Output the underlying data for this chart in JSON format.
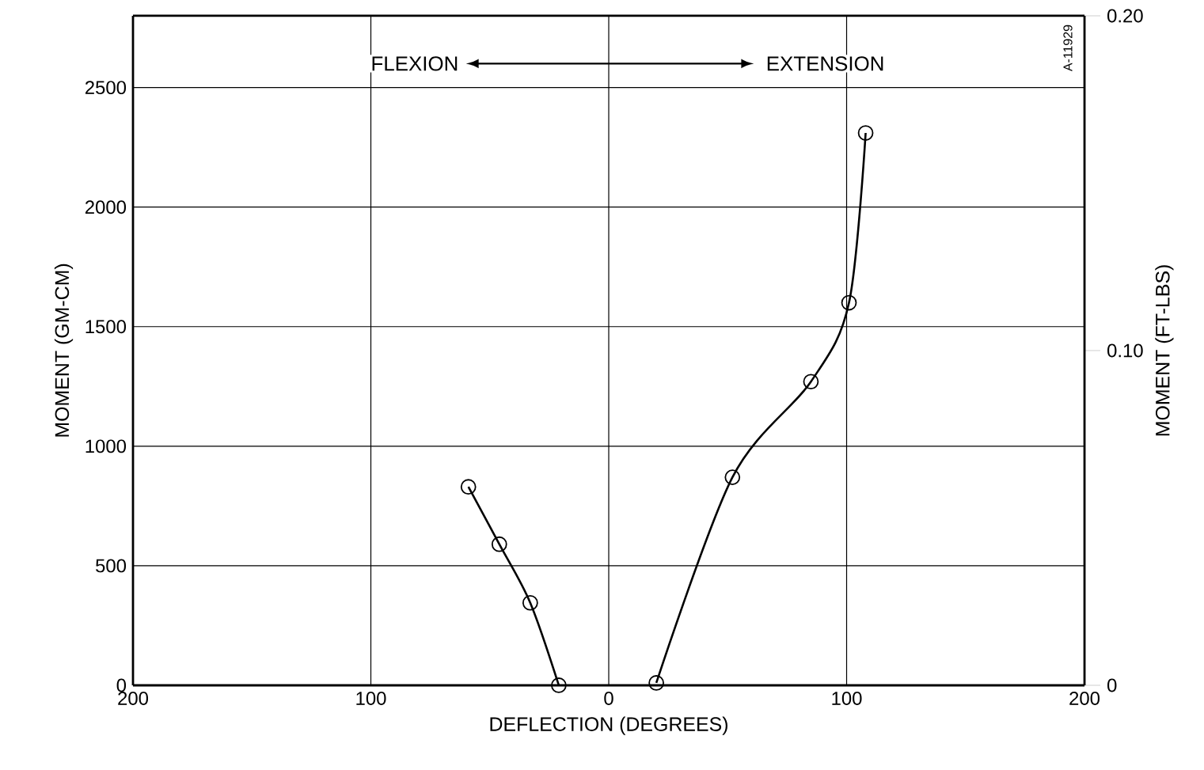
{
  "chart_data": {
    "type": "line",
    "xlabel": "DEFLECTION (DEGREES)",
    "ylabel": "MOMENT (GM-CM)",
    "y2label": "MOMENT (FT-LBS)",
    "annotations": [
      "FLEXION",
      "EXTENSION",
      "A-11929"
    ],
    "xlim": [
      -200,
      200
    ],
    "xticks": [
      {
        "value": -200,
        "label": "200"
      },
      {
        "value": -100,
        "label": "100"
      },
      0,
      100,
      200
    ],
    "ylim": [
      0,
      2800
    ],
    "yticks": [
      0,
      500,
      1000,
      1500,
      2000,
      2500
    ],
    "y2lim": [
      0,
      0.2
    ],
    "y2ticks": [
      0,
      {
        "value": 0.1,
        "label": "0.10"
      },
      {
        "value": 0.2,
        "label": "0.20"
      }
    ],
    "grid": true,
    "marker": "circle",
    "line_style": "solid",
    "series": [
      {
        "color": "#000000",
        "x": [
          -59,
          -46,
          -33,
          -21
        ],
        "values": [
          830,
          590,
          345,
          0
        ]
      },
      {
        "color": "#000000",
        "x": [
          20,
          52,
          85,
          101,
          108
        ],
        "values": [
          10,
          870,
          1270,
          1600,
          2310
        ]
      }
    ]
  }
}
